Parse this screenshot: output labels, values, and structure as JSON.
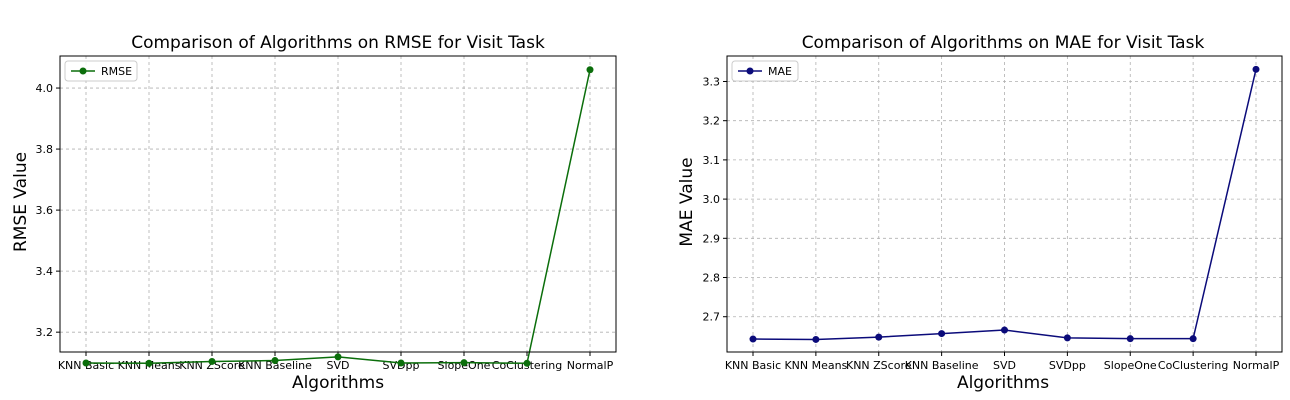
{
  "colors": {
    "rmse_series": "#0b6e0b",
    "mae_series": "#0b0b7a"
  },
  "chart_data": [
    {
      "id": "rmse",
      "type": "line",
      "title": "Comparison of Algorithms on RMSE for Visit Task",
      "xlabel": "Algorithms",
      "ylabel": "RMSE Value",
      "categories": [
        "KNN Basic",
        "KNN Means",
        "KNN ZScore",
        "KNN Baseline",
        "SVD",
        "SVDpp",
        "SlopeOne",
        "CoClustering",
        "NormalP"
      ],
      "series": [
        {
          "name": "RMSE",
          "color": "#0b6e0b",
          "marker": "circle",
          "values": [
            3.099,
            3.098,
            3.104,
            3.107,
            3.119,
            3.099,
            3.1,
            3.098,
            4.06
          ]
        }
      ],
      "ylim": [
        3.135,
        4.105
      ],
      "yticks": [
        3.2,
        3.4,
        3.6,
        3.8,
        4.0
      ],
      "ytick_labels": [
        "3.2",
        "3.4",
        "3.6",
        "3.8",
        "4.0"
      ],
      "grid": true,
      "legend_position": "top-left"
    },
    {
      "id": "mae",
      "type": "line",
      "title": "Comparison of Algorithms on MAE for Visit Task",
      "xlabel": "Algorithms",
      "ylabel": "MAE Value",
      "categories": [
        "KNN Basic",
        "KNN Means",
        "KNN ZScore",
        "KNN Baseline",
        "SVD",
        "SVDpp",
        "SlopeOne",
        "CoClustering",
        "NormalP"
      ],
      "series": [
        {
          "name": "MAE",
          "color": "#0b0b7a",
          "marker": "circle",
          "values": [
            2.643,
            2.642,
            2.648,
            2.657,
            2.666,
            2.646,
            2.644,
            2.644,
            3.331
          ]
        }
      ],
      "ylim": [
        2.61,
        3.365
      ],
      "yticks": [
        2.7,
        2.8,
        2.9,
        3.0,
        3.1,
        3.2,
        3.3
      ],
      "ytick_labels": [
        "2.7",
        "2.8",
        "2.9",
        "3.0",
        "3.1",
        "3.2",
        "3.3"
      ],
      "grid": true,
      "legend_position": "top-left"
    }
  ]
}
